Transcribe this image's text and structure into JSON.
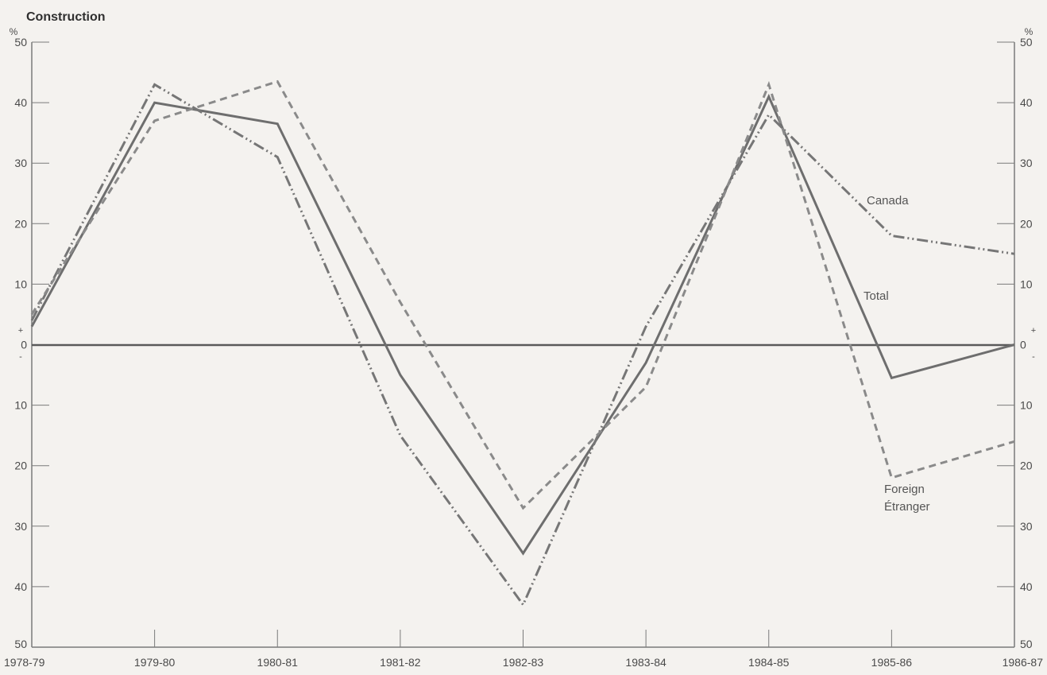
{
  "chart_data": {
    "type": "line",
    "title": "Construction",
    "unit": "%",
    "plus_sign": "+",
    "minus_sign": "-",
    "categories": [
      "1978-79",
      "1979-80",
      "1980-81",
      "1981-82",
      "1982-83",
      "1983-84",
      "1984-85",
      "1985-86",
      "1986-87"
    ],
    "y_ticks": [
      {
        "value": 40,
        "label": "40"
      },
      {
        "value": 30,
        "label": "30"
      },
      {
        "value": 20,
        "label": "20"
      },
      {
        "value": 10,
        "label": "10"
      },
      {
        "value": 0,
        "label": "0"
      },
      {
        "value": -10,
        "label": "10"
      },
      {
        "value": -20,
        "label": "20"
      },
      {
        "value": -30,
        "label": "30"
      },
      {
        "value": -40,
        "label": "40"
      }
    ],
    "y_extremes": {
      "top": 50,
      "bottom": -50,
      "top_label": "50",
      "bottom_label": "50"
    },
    "ylim": [
      -50,
      50
    ],
    "grid": false,
    "series": [
      {
        "name": "Total",
        "label_lines": [
          "Total"
        ],
        "style": "solid",
        "color": "#6e6e6e",
        "values": [
          3,
          40,
          36.5,
          -5,
          -34.5,
          -3,
          41,
          -5.5,
          0
        ]
      },
      {
        "name": "Canada",
        "label_lines": [
          "Canada"
        ],
        "style": "dash-dot-dot",
        "color": "#767676",
        "values": [
          4,
          43,
          31,
          -15,
          -43,
          3,
          38,
          18,
          15
        ]
      },
      {
        "name": "Foreign / Étranger",
        "label_lines": [
          "Foreign",
          "Étranger"
        ],
        "style": "dashed",
        "color": "#8a8a8a",
        "values": [
          5,
          37,
          43.5,
          7,
          -27,
          -7,
          43,
          -22,
          -16
        ]
      }
    ]
  }
}
